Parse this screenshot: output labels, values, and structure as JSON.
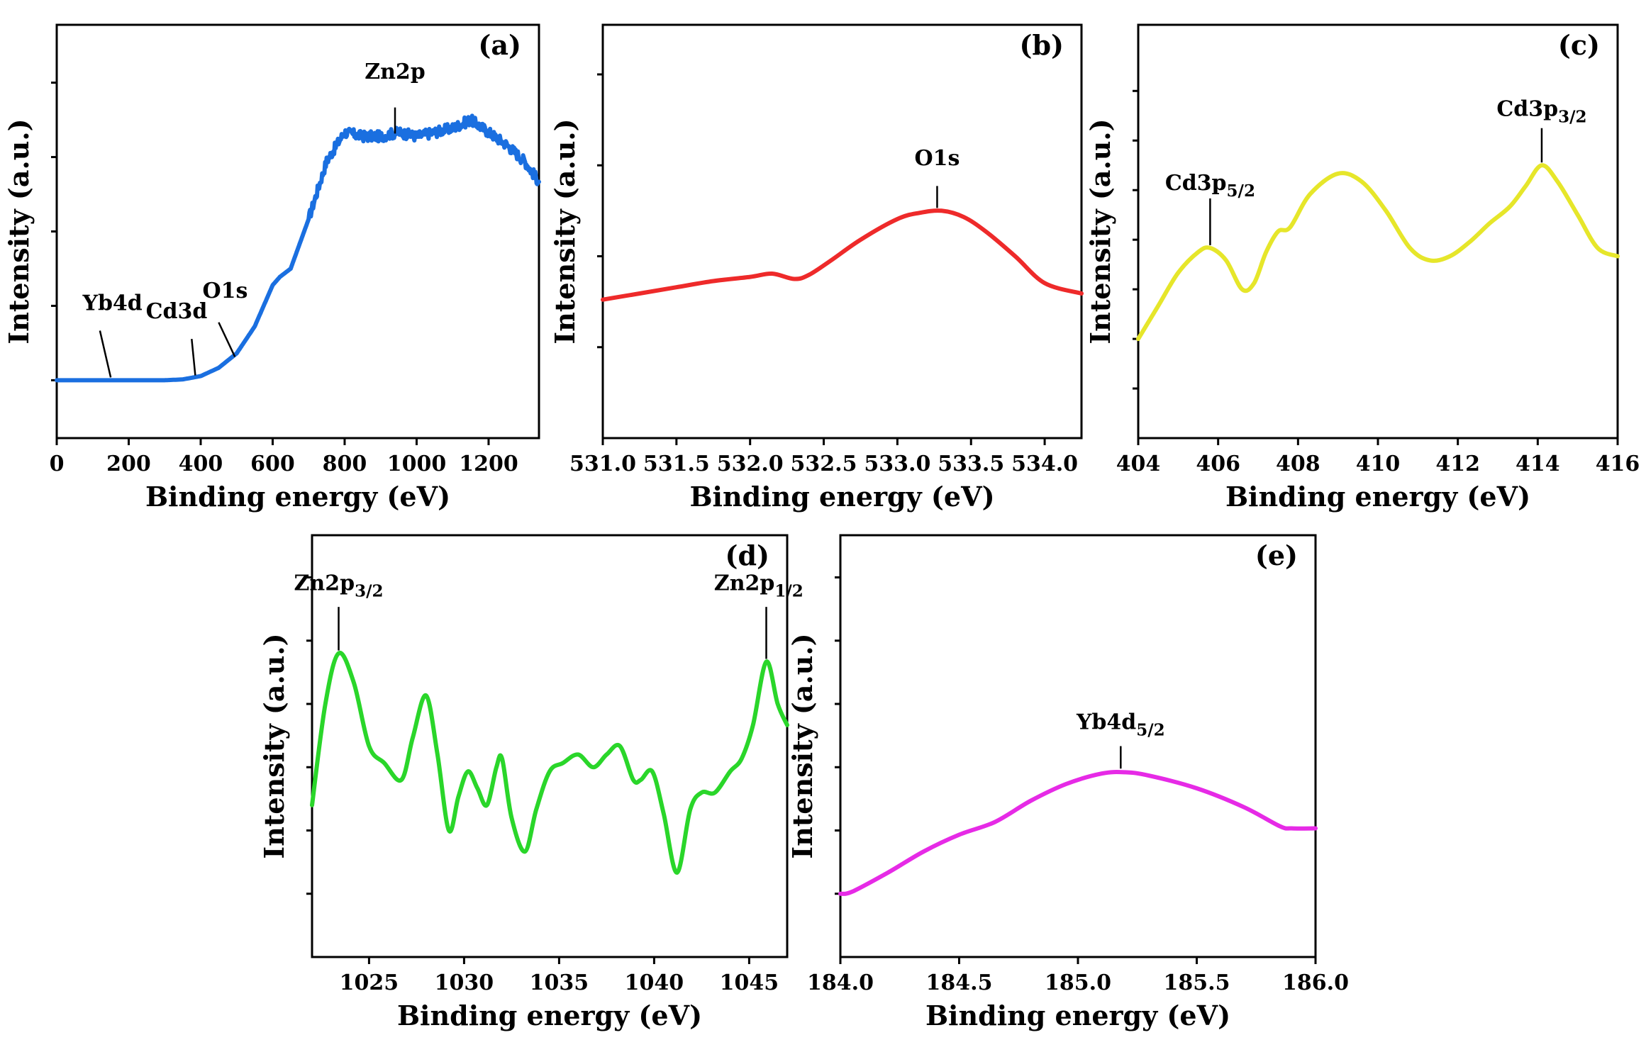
{
  "chart_data": [
    {
      "id": "a",
      "panel_label": "(a)",
      "type": "line",
      "color": "#1a6fe0",
      "xlabel": "Binding energy (eV)",
      "ylabel": "Intensity (a.u.)",
      "xlim": [
        0,
        1340
      ],
      "ylim": [
        0,
        100
      ],
      "xticks": [
        0,
        200,
        400,
        600,
        800,
        1000,
        1200
      ],
      "xtick_labels": [
        "0",
        "200",
        "400",
        "600",
        "800",
        "1000",
        "1200"
      ],
      "yticks": [
        14,
        32,
        50,
        68,
        86
      ],
      "noise": 0.8,
      "x": [
        0,
        100,
        200,
        300,
        350,
        400,
        450,
        500,
        550,
        600,
        620,
        650,
        700,
        750,
        800,
        850,
        900,
        950,
        1000,
        1050,
        1100,
        1150,
        1200,
        1250,
        1300,
        1340
      ],
      "y": [
        14,
        14,
        14,
        14,
        14.2,
        15,
        17,
        20.5,
        27,
        37,
        39,
        41,
        53,
        67,
        74,
        73,
        73,
        74,
        73,
        74,
        75,
        77,
        74,
        71,
        67,
        62
      ],
      "annotations": [
        {
          "label": "Yb4d",
          "sub": "",
          "x": 150,
          "y": 14,
          "tip_from": [
            120,
            26
          ],
          "text_at": [
            155,
            31
          ]
        },
        {
          "label": "Cd3d",
          "sub": "",
          "x": 385,
          "y": 14.5,
          "tip_from": [
            375,
            24
          ],
          "text_at": [
            333,
            29
          ]
        },
        {
          "label": "O1s",
          "sub": "",
          "x": 495,
          "y": 19,
          "tip_from": [
            450,
            28
          ],
          "text_at": [
            468,
            34
          ]
        },
        {
          "label": "Zn2p",
          "sub": "",
          "x": 940,
          "y": 73,
          "tip_from": [
            940,
            80
          ],
          "text_at": [
            940,
            87
          ]
        }
      ]
    },
    {
      "id": "b",
      "panel_label": "(b)",
      "type": "line",
      "color": "#ee2a2a",
      "xlabel": "Binding energy (eV)",
      "ylabel": "Intensity (a.u.)",
      "xlim": [
        531.0,
        534.25
      ],
      "ylim": [
        0,
        100
      ],
      "xticks": [
        531.0,
        531.5,
        532.0,
        532.5,
        533.0,
        533.5,
        534.0
      ],
      "xtick_labels": [
        "531.0",
        "531.5",
        "532.0",
        "532.5",
        "533.0",
        "533.5",
        "534.0"
      ],
      "yticks": [
        22,
        44,
        66,
        88
      ],
      "noise": 0,
      "x": [
        531.0,
        531.25,
        531.5,
        531.75,
        532.0,
        532.15,
        532.3,
        532.4,
        532.55,
        532.75,
        533.0,
        533.15,
        533.3,
        533.45,
        533.6,
        533.8,
        534.0,
        534.25
      ],
      "y": [
        33.5,
        35,
        36.5,
        38,
        39,
        39.8,
        38.5,
        39.5,
        43,
        48,
        53,
        54.5,
        55,
        53.5,
        50,
        44,
        37.5,
        35
      ],
      "annotations": [
        {
          "label": "O1s",
          "sub": "",
          "x": 533.27,
          "y": 55,
          "tip_from": [
            533.27,
            61
          ],
          "text_at": [
            533.27,
            66
          ]
        }
      ]
    },
    {
      "id": "c",
      "panel_label": "(c)",
      "type": "line",
      "color": "#e6e62a",
      "xlabel": "Binding energy (eV)",
      "ylabel": "Intensity (a.u.)",
      "xlim": [
        404,
        416
      ],
      "ylim": [
        0,
        100
      ],
      "xticks": [
        404,
        406,
        408,
        410,
        412,
        414,
        416
      ],
      "xtick_labels": [
        "404",
        "406",
        "408",
        "410",
        "412",
        "414",
        "416"
      ],
      "yticks": [
        12,
        24,
        36,
        48,
        60,
        72,
        84
      ],
      "noise": 0,
      "x": [
        404.0,
        404.5,
        405.0,
        405.5,
        405.8,
        406.2,
        406.6,
        406.9,
        407.2,
        407.5,
        407.8,
        408.3,
        409.0,
        409.6,
        410.2,
        410.8,
        411.3,
        411.8,
        412.3,
        412.8,
        413.3,
        413.7,
        414.1,
        414.5,
        415.0,
        415.5,
        416.0
      ],
      "y": [
        24,
        32,
        40,
        45,
        46,
        43,
        36,
        37.5,
        45,
        50,
        51,
        59,
        64,
        62,
        55,
        46,
        43,
        44,
        47.5,
        52,
        56,
        61,
        66,
        62,
        54,
        46,
        44
      ],
      "annotations": [
        {
          "label": "Cd3p",
          "sub": "5/2",
          "x": 405.8,
          "y": 46,
          "tip_from": [
            405.8,
            58
          ],
          "text_at": [
            405.8,
            60
          ]
        },
        {
          "label": "Cd3p",
          "sub": "3/2",
          "x": 414.1,
          "y": 66,
          "tip_from": [
            414.1,
            75
          ],
          "text_at": [
            414.1,
            78
          ]
        }
      ]
    },
    {
      "id": "d",
      "panel_label": "(d)",
      "type": "line",
      "color": "#2ad62a",
      "xlabel": "Binding energy (eV)",
      "ylabel": "Intensity (a.u.)",
      "xlim": [
        1022,
        1047
      ],
      "ylim": [
        0,
        100
      ],
      "xticks": [
        1025,
        1030,
        1035,
        1040,
        1045
      ],
      "xtick_labels": [
        "1025",
        "1030",
        "1035",
        "1040",
        "1045"
      ],
      "yticks": [
        15,
        30,
        45,
        60,
        75,
        90
      ],
      "noise": 0,
      "x": [
        1022.0,
        1022.7,
        1023.4,
        1024.2,
        1025.0,
        1025.8,
        1026.7,
        1027.3,
        1028.0,
        1028.6,
        1029.2,
        1029.7,
        1030.2,
        1030.7,
        1031.2,
        1031.7,
        1032.0,
        1032.5,
        1033.2,
        1033.8,
        1034.5,
        1035.2,
        1036.0,
        1036.8,
        1037.5,
        1038.2,
        1038.9,
        1039.3,
        1039.9,
        1040.5,
        1041.2,
        1041.9,
        1042.5,
        1043.2,
        1044.0,
        1044.6,
        1045.2,
        1045.9,
        1046.5,
        1047.0
      ],
      "y": [
        36,
        60,
        72,
        65,
        50,
        46,
        42,
        52,
        62,
        48,
        30,
        38,
        44,
        40,
        36,
        45,
        47,
        33,
        25,
        35,
        44,
        46,
        48,
        45,
        48,
        50,
        42,
        42,
        44,
        34,
        20,
        35,
        39,
        39,
        44,
        47,
        55,
        70,
        60,
        55
      ],
      "annotations": [
        {
          "label": "Zn2p",
          "sub": "3/2",
          "x": 1023.4,
          "y": 72,
          "tip_from": [
            1023.4,
            83
          ],
          "text_at": [
            1023.4,
            87
          ]
        },
        {
          "label": "Zn2p",
          "sub": "1/2",
          "x": 1045.9,
          "y": 70,
          "tip_from": [
            1045.9,
            83
          ],
          "text_at": [
            1045.5,
            87
          ]
        }
      ]
    },
    {
      "id": "e",
      "panel_label": "(e)",
      "type": "line",
      "color": "#e62ae6",
      "xlabel": "Binding energy (eV)",
      "ylabel": "Intensity (a.u.)",
      "xlim": [
        184.0,
        186.0
      ],
      "ylim": [
        0,
        100
      ],
      "xticks": [
        184.0,
        184.5,
        185.0,
        185.5,
        186.0
      ],
      "xtick_labels": [
        "184.0",
        "184.5",
        "185.0",
        "185.5",
        "186.0"
      ],
      "yticks": [
        15,
        30,
        45,
        60,
        75,
        90
      ],
      "noise": 0,
      "x": [
        184.0,
        184.05,
        184.2,
        184.35,
        184.5,
        184.65,
        184.8,
        184.95,
        185.1,
        185.2,
        185.3,
        185.5,
        185.7,
        185.85,
        185.9,
        186.0
      ],
      "y": [
        15,
        15.5,
        20,
        25,
        29,
        32,
        37,
        41,
        43.5,
        43.8,
        43,
        40,
        35.5,
        31,
        30.5,
        30.5
      ],
      "annotations": [
        {
          "label": "Yb4d",
          "sub": "5/2",
          "x": 185.18,
          "y": 44,
          "tip_from": [
            185.18,
            50
          ],
          "text_at": [
            185.18,
            54
          ]
        }
      ]
    }
  ]
}
